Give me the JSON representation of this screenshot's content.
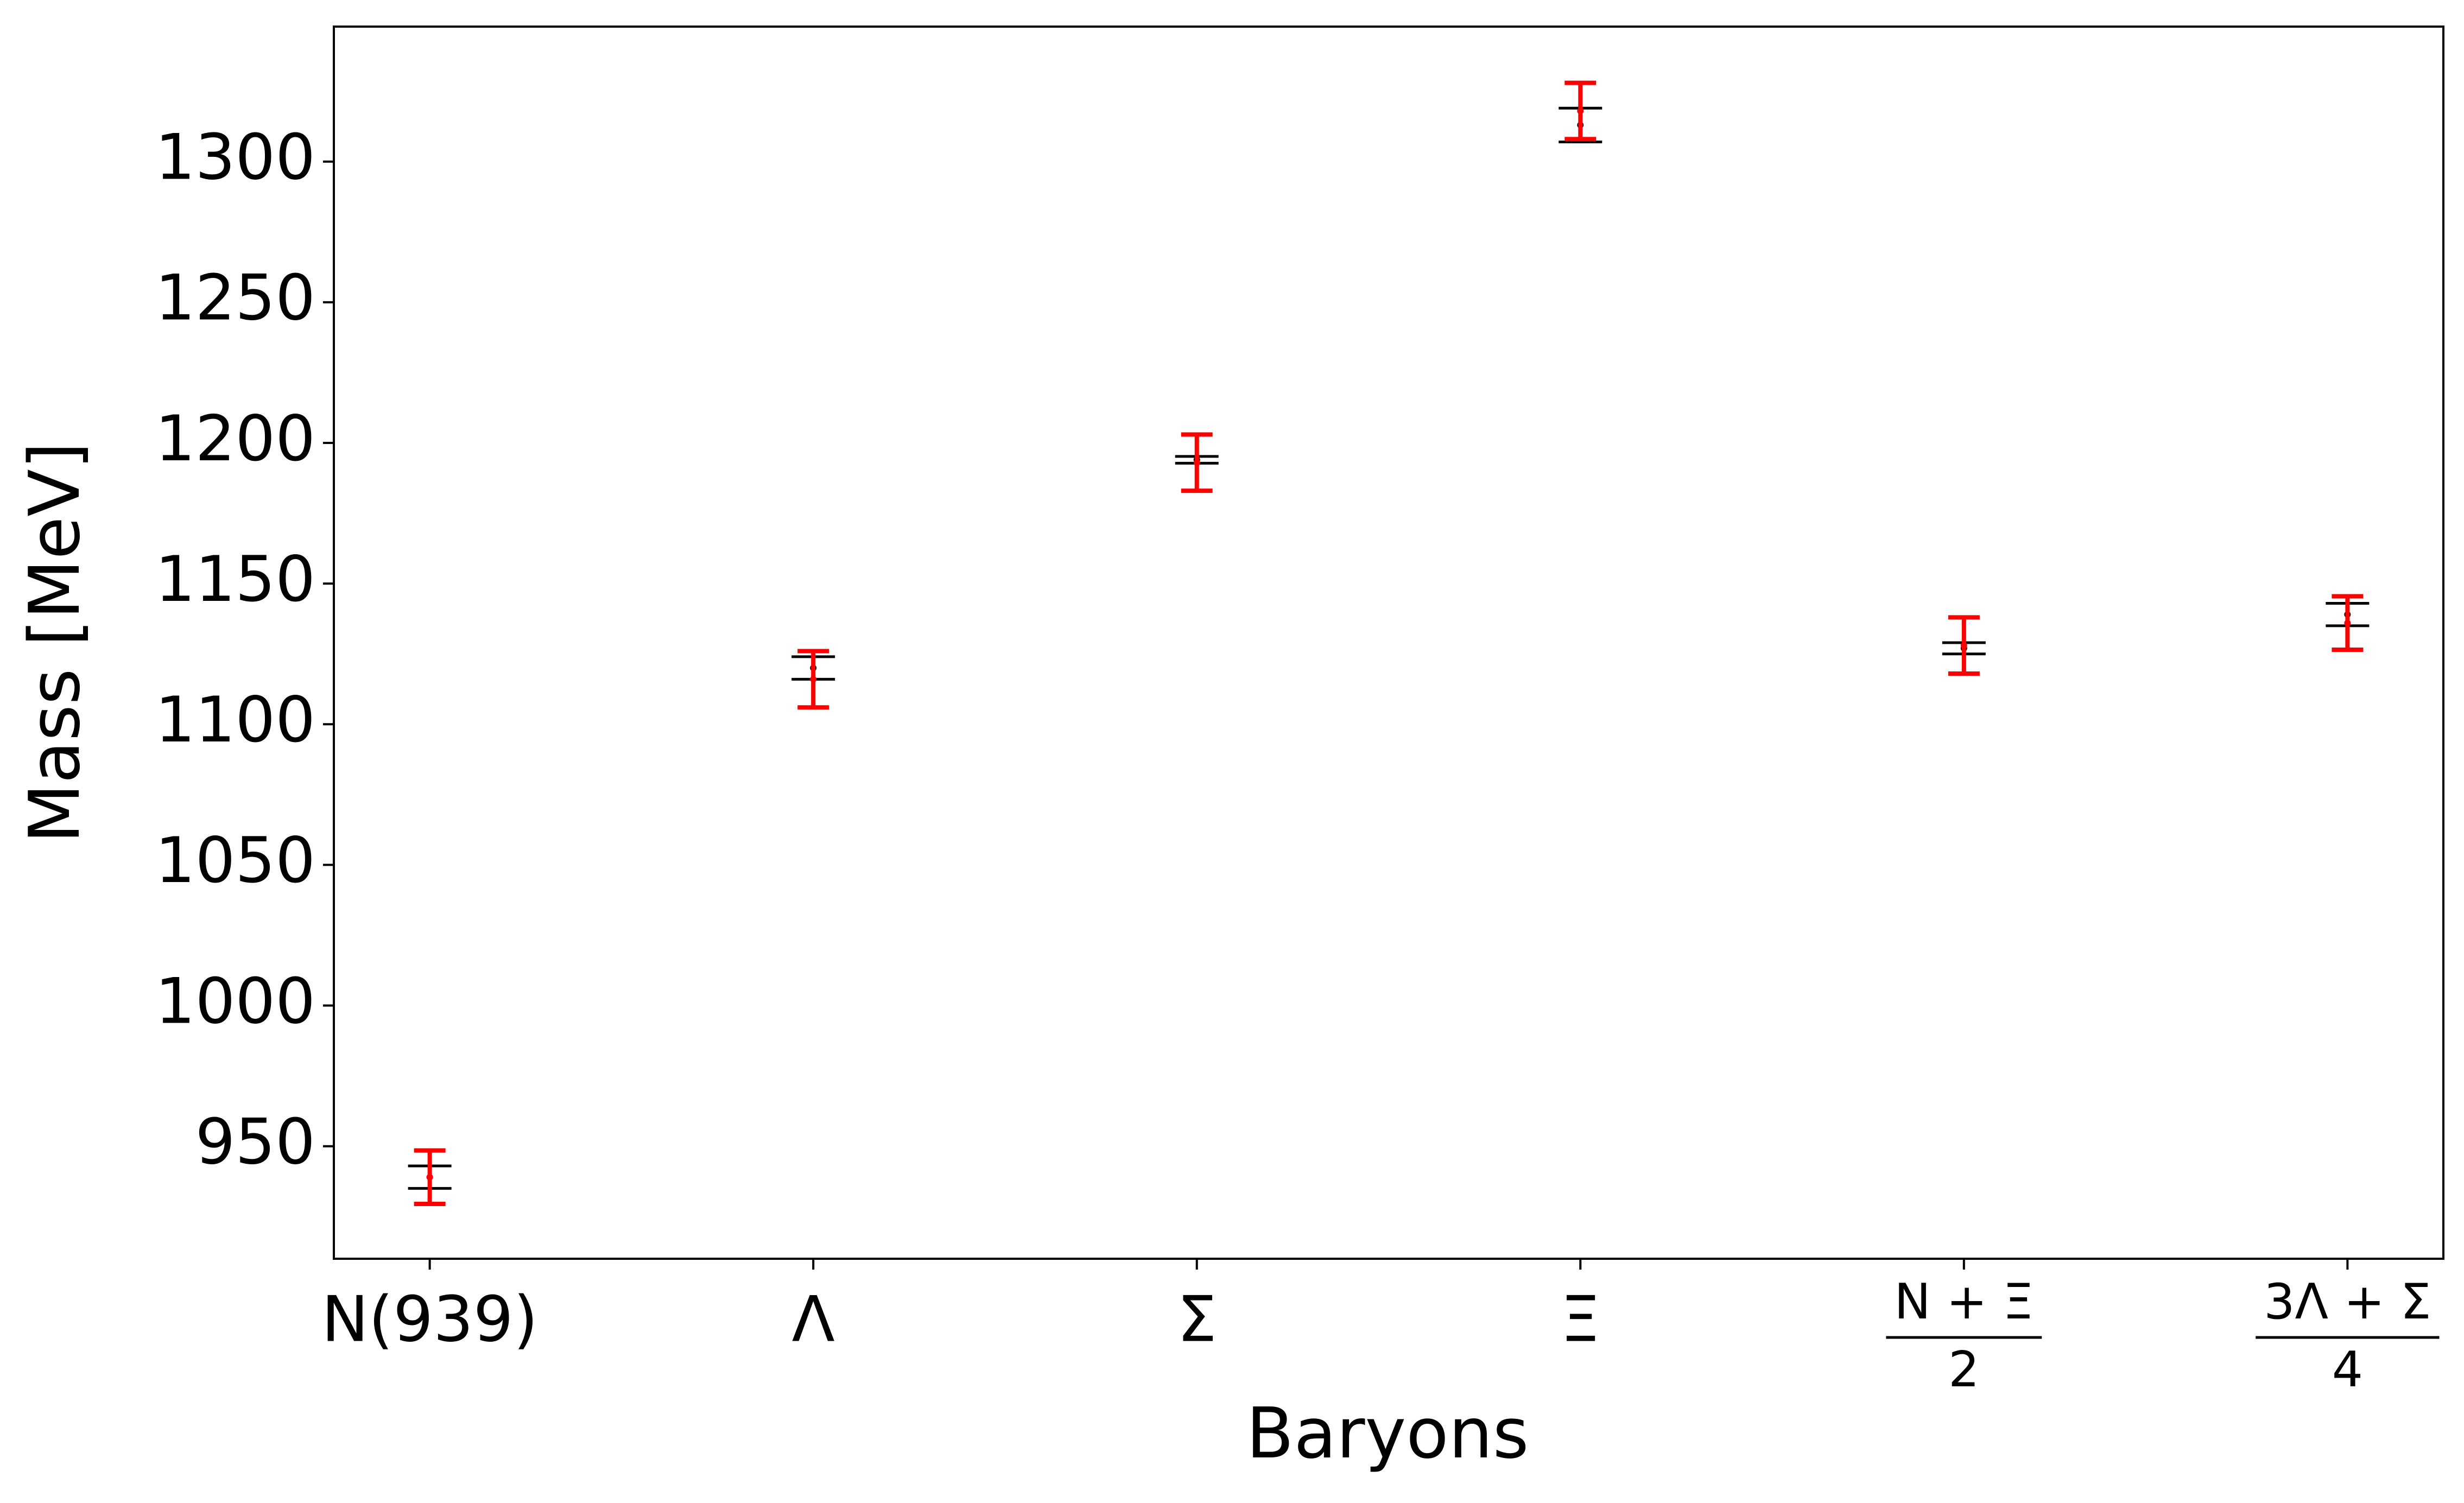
{
  "chart_data": {
    "type": "errorbar",
    "x_label": "Baryons",
    "y_label": "Mass [MeV]",
    "categories": [
      "N(939)",
      "Λ",
      "Σ",
      "Ξ",
      {
        "numerator": "N + Ξ",
        "denominator": "2"
      },
      {
        "numerator": "3Λ + Σ",
        "denominator": "4"
      }
    ],
    "series": [
      {
        "color": "#000000",
        "values": [
          939,
          1120,
          1194,
          1313,
          1127,
          1139
        ],
        "errors": [
          4,
          4,
          1.2,
          6,
          2,
          4
        ]
      },
      {
        "color": "#ff0000",
        "values": [
          939,
          1116,
          1193,
          1318,
          1128,
          1136
        ],
        "errors": [
          9.5,
          10,
          10,
          10,
          10,
          9.5
        ]
      }
    ],
    "ylim": [
      910,
      1348
    ],
    "yticks": [
      950,
      1000,
      1050,
      1100,
      1150,
      1200,
      1250,
      1300
    ]
  }
}
